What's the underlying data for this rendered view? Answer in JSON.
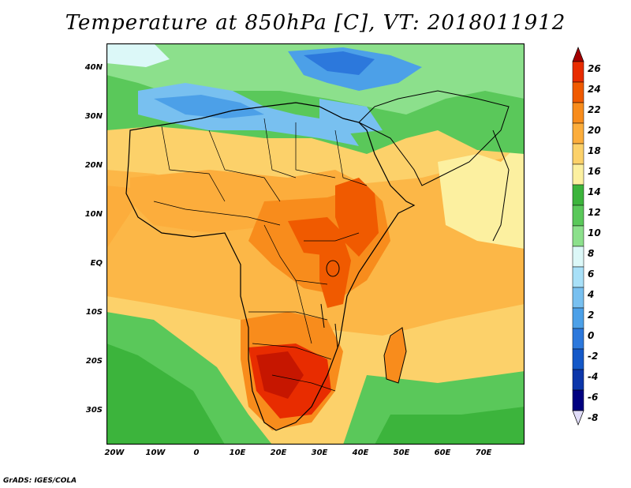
{
  "title": "Temperature at 850hPa [C], VT: 2018011912",
  "footer": "GrADS: IGES/COLA",
  "map": {
    "lat_labels": [
      "40N",
      "30N",
      "20N",
      "10N",
      "EQ",
      "10S",
      "20S",
      "30S"
    ],
    "lon_labels": [
      "20W",
      "10W",
      "0",
      "10E",
      "20E",
      "30E",
      "40E",
      "50E",
      "60E",
      "70E"
    ]
  },
  "colorbar": {
    "labels": [
      "26",
      "24",
      "22",
      "20",
      "18",
      "16",
      "14",
      "12",
      "10",
      "8",
      "6",
      "4",
      "2",
      "0",
      "-2",
      "-4",
      "-6",
      "-8"
    ],
    "colors": [
      "#a40000",
      "#e82c00",
      "#f05a00",
      "#f88c1c",
      "#fcad3c",
      "#fcd16a",
      "#fcf0a0",
      "#3cb43c",
      "#5ac85a",
      "#8ce08c",
      "#dcf8f8",
      "#a8e0f8",
      "#78c0f0",
      "#4ca0e8",
      "#2c78dc",
      "#1458c8",
      "#0c36aa",
      "#000080",
      "#e0dcf8"
    ]
  }
}
